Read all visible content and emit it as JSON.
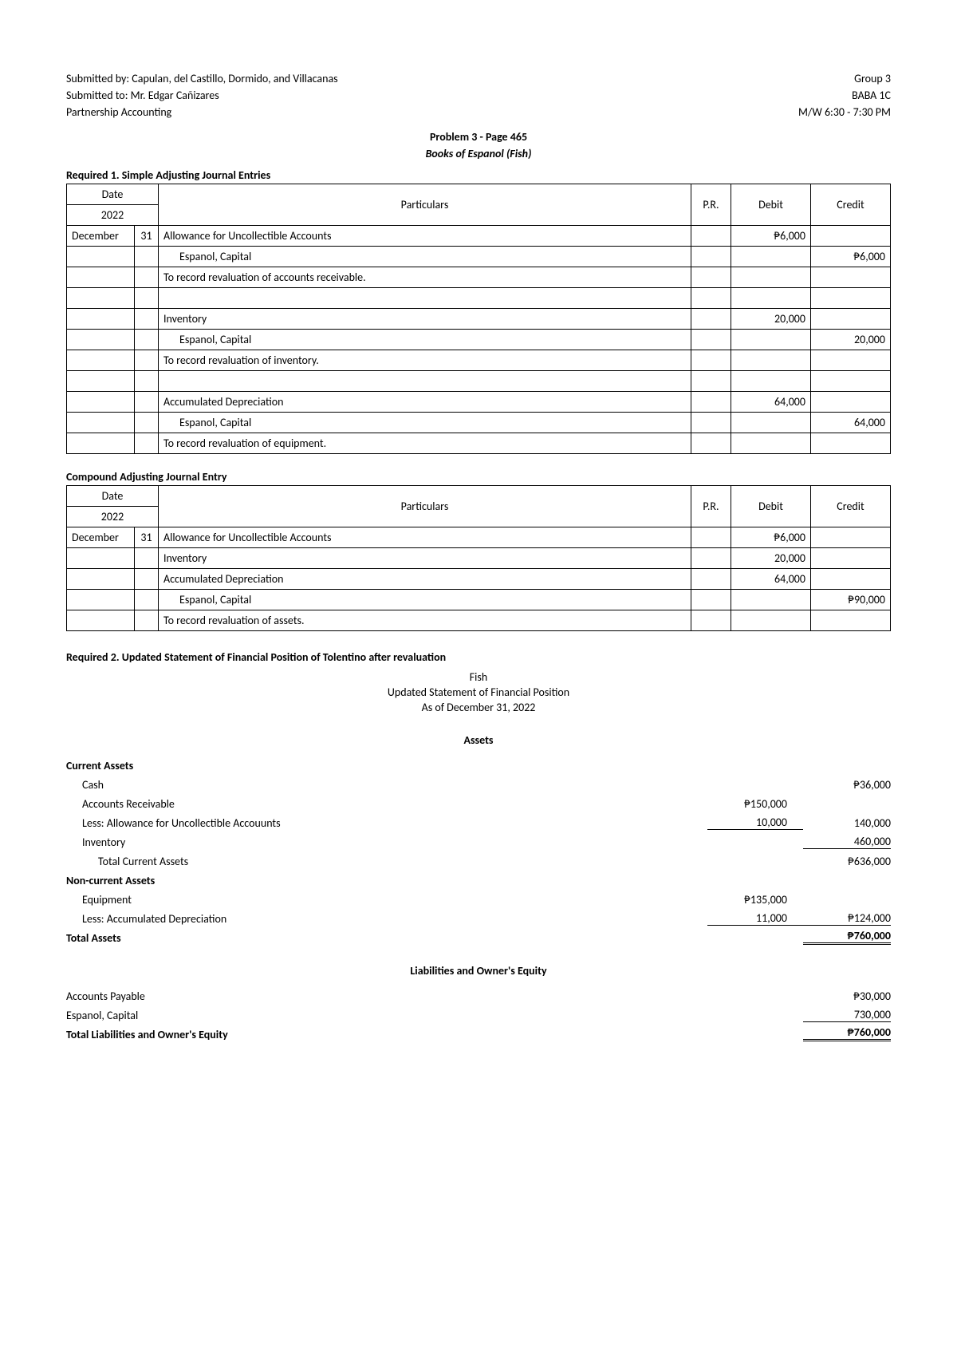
{
  "header": {
    "submitted_by": "Submitted by: Capulan, del Castillo, Dormido, and Villacanas",
    "submitted_to": "Submitted to: Mr. Edgar Cañizares",
    "subject": "Partnership Accounting",
    "group": "Group 3",
    "section": "BABA 1C",
    "schedule": "M/W 6:30 - 7:30 PM"
  },
  "problem_title": "Problem 3 - Page 465",
  "books_title": "Books of Espanol (Fish)",
  "required1": "Required 1. Simple Adjusting Journal Entries",
  "table_headers": {
    "date": "Date",
    "year": "2022",
    "particulars": "Particulars",
    "pr": "P.R.",
    "debit": "Debit",
    "credit": "Credit"
  },
  "journal1": {
    "rows": [
      {
        "month": "December",
        "day": "31",
        "particulars": "Allowance for Uncollectible Accounts",
        "pr": "",
        "debit": "₱6,000",
        "credit": "",
        "indent": ""
      },
      {
        "month": "",
        "day": "",
        "particulars": "Espanol, Capital",
        "pr": "",
        "debit": "",
        "credit": "₱6,000",
        "indent": "indent1"
      },
      {
        "month": "",
        "day": "",
        "particulars": "To record revaluation of accounts receivable.",
        "pr": "",
        "debit": "",
        "credit": "",
        "indent": ""
      },
      {
        "month": "",
        "day": "",
        "particulars": "",
        "pr": "",
        "debit": "",
        "credit": "",
        "indent": ""
      },
      {
        "month": "",
        "day": "",
        "particulars": "Inventory",
        "pr": "",
        "debit": "20,000",
        "credit": "",
        "indent": ""
      },
      {
        "month": "",
        "day": "",
        "particulars": "Espanol, Capital",
        "pr": "",
        "debit": "",
        "credit": "20,000",
        "indent": "indent1"
      },
      {
        "month": "",
        "day": "",
        "particulars": "To record revaluation of inventory.",
        "pr": "",
        "debit": "",
        "credit": "",
        "indent": ""
      },
      {
        "month": "",
        "day": "",
        "particulars": "",
        "pr": "",
        "debit": "",
        "credit": "",
        "indent": ""
      },
      {
        "month": "",
        "day": "",
        "particulars": "Accumulated Depreciation",
        "pr": "",
        "debit": "64,000",
        "credit": "",
        "indent": ""
      },
      {
        "month": "",
        "day": "",
        "particulars": "Espanol, Capital",
        "pr": "",
        "debit": "",
        "credit": "64,000",
        "indent": "indent1"
      },
      {
        "month": "",
        "day": "",
        "particulars": "To record revaluation of equipment.",
        "pr": "",
        "debit": "",
        "credit": "",
        "indent": ""
      }
    ]
  },
  "compound_title": "Compound Adjusting Journal Entry",
  "journal2": {
    "rows": [
      {
        "month": "December",
        "day": "31",
        "particulars": "Allowance for Uncollectible Accounts",
        "pr": "",
        "debit": "₱6,000",
        "credit": "",
        "indent": ""
      },
      {
        "month": "",
        "day": "",
        "particulars": "Inventory",
        "pr": "",
        "debit": "20,000",
        "credit": "",
        "indent": ""
      },
      {
        "month": "",
        "day": "",
        "particulars": "Accumulated Depreciation",
        "pr": "",
        "debit": "64,000",
        "credit": "",
        "indent": ""
      },
      {
        "month": "",
        "day": "",
        "particulars": "Espanol, Capital",
        "pr": "",
        "debit": "",
        "credit": "₱90,000",
        "indent": "indent1"
      },
      {
        "month": "",
        "day": "",
        "particulars": "To record revaluation of assets.",
        "pr": "",
        "debit": "",
        "credit": "",
        "indent": ""
      }
    ]
  },
  "required2": "Required 2. Updated Statement of Financial Position of Tolentino after revaluation",
  "stmt": {
    "company": "Fish",
    "title": "Updated Statement of Financial Position",
    "date": "As of December 31, 2022"
  },
  "assets_heading": "Assets",
  "current_assets_label": "Current Assets",
  "assets": {
    "cash": {
      "label": "Cash",
      "col1": "",
      "col2": "₱36,000"
    },
    "ar": {
      "label": "Accounts Receivable",
      "col1": "₱150,000",
      "col2": ""
    },
    "allowance": {
      "label": "Less: Allowance for Uncollectible Accouunts",
      "col1": "10,000",
      "col2": "140,000"
    },
    "inventory": {
      "label": "Inventory",
      "col1": "",
      "col2": "460,000"
    },
    "total_current": {
      "label": "Total Current Assets",
      "col1": "",
      "col2": "₱636,000"
    }
  },
  "noncurrent_label": "Non-current Assets",
  "noncurrent": {
    "equipment": {
      "label": "Equipment",
      "col1": "₱135,000",
      "col2": ""
    },
    "depreciation": {
      "label": "Less: Accumulated Depreciation",
      "col1": "11,000",
      "col2": "₱124,000"
    }
  },
  "total_assets": {
    "label": "Total Assets",
    "col2": "₱760,000"
  },
  "liab_heading": "Liabilities and Owner's Equity",
  "liab": {
    "ap": {
      "label": "Accounts Payable",
      "col2": "₱30,000"
    },
    "capital": {
      "label": "Espanol, Capital",
      "col2": "730,000"
    },
    "total": {
      "label": "Total Liabilities and Owner's Equity",
      "col2": "₱760,000"
    }
  }
}
